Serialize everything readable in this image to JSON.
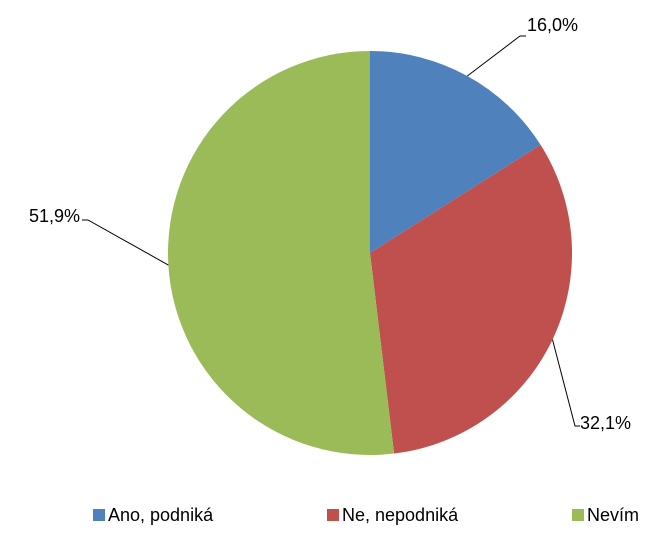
{
  "chart_data": {
    "type": "pie",
    "categories": [
      "Ano, podniká",
      "Ne, nepodniká",
      "Nevím"
    ],
    "values": [
      16.0,
      32.1,
      51.9
    ],
    "value_labels": [
      "16,0%",
      "32,1%",
      "51,9%"
    ],
    "colors": [
      "#4f81bd",
      "#c0504d",
      "#9bbb59"
    ],
    "legend": "bottom"
  }
}
